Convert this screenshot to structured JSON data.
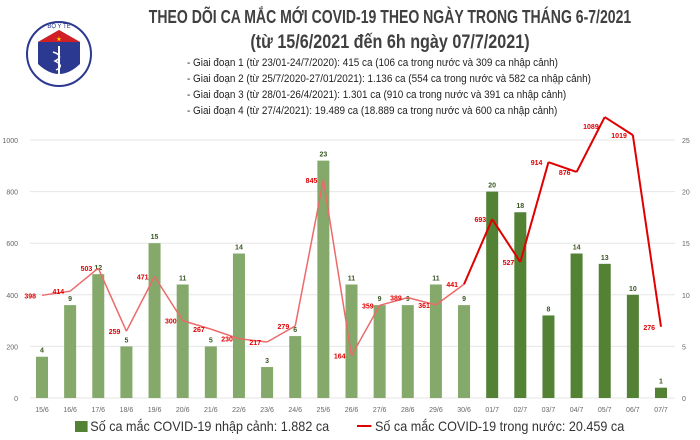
{
  "header": {
    "title": "THEO DÕI CA MẮC MỚI COVID-19 THEO NGÀY TRONG THÁNG 6-7/2021",
    "subtitle": "(từ 15/6/2021 đến 6h ngày 07/7/2021)",
    "logo_text": "BỘ Y TẾ",
    "phases": [
      "- Giai đoạn 1 (từ 23/01-24/7/2020): 415 ca (106 ca trong nước và 309 ca nhập cảnh)",
      "- Giai đoạn 2 (từ 25/7/2020-27/01/2021): 1.136 ca (554 ca trong nước và 582 ca nhập cảnh)",
      "- Giai đoạn 3 (từ 28/01-26/4/2021): 1.301 ca (910 ca trong nước và 391 ca nhập cảnh)",
      "- Giai đoạn 4 (từ 27/4/2021): 19.489 ca (18.889 ca trong nước và 600 ca nhập cảnh)"
    ]
  },
  "chart_data": {
    "type": "bar+line",
    "categories": [
      "15/6",
      "16/6",
      "17/6",
      "18/6",
      "19/6",
      "20/6",
      "21/6",
      "22/6",
      "23/6",
      "24/6",
      "25/6",
      "26/6",
      "27/6",
      "28/6",
      "29/6",
      "30/6",
      "01/7",
      "02/7",
      "03/7",
      "04/7",
      "05/7",
      "06/7",
      "07/7"
    ],
    "series": [
      {
        "name": "Số ca mắc COVID-19 nhập cảnh: 1.882 ca",
        "type": "bar",
        "axis": "right",
        "color": "#548235",
        "faded_color": "#84a96a",
        "values": [
          4,
          9,
          12,
          5,
          15,
          11,
          5,
          14,
          3,
          6,
          23,
          11,
          9,
          9,
          11,
          9,
          20,
          18,
          8,
          14,
          13,
          10,
          1
        ]
      },
      {
        "name": "Số ca mắc COVID-19 trong nước: 20.459 ca",
        "type": "line",
        "axis": "left",
        "color": "#e00000",
        "faded_color": "#ec6a6a",
        "values": [
          398,
          414,
          503,
          259,
          471,
          300,
          267,
          230,
          217,
          279,
          845,
          164,
          359,
          389,
          361,
          441,
          693,
          527,
          914,
          876,
          1089,
          1019,
          276
        ]
      }
    ],
    "left_axis": {
      "ylim": [
        0,
        1000
      ],
      "ticks": [
        "0",
        "200",
        "400",
        "600",
        "800",
        "1000"
      ]
    },
    "right_axis": {
      "ylim": [
        0,
        25
      ],
      "ticks": [
        "0",
        "5",
        "10",
        "15",
        "20",
        "25"
      ]
    },
    "grid": true,
    "legend": "bottom"
  }
}
